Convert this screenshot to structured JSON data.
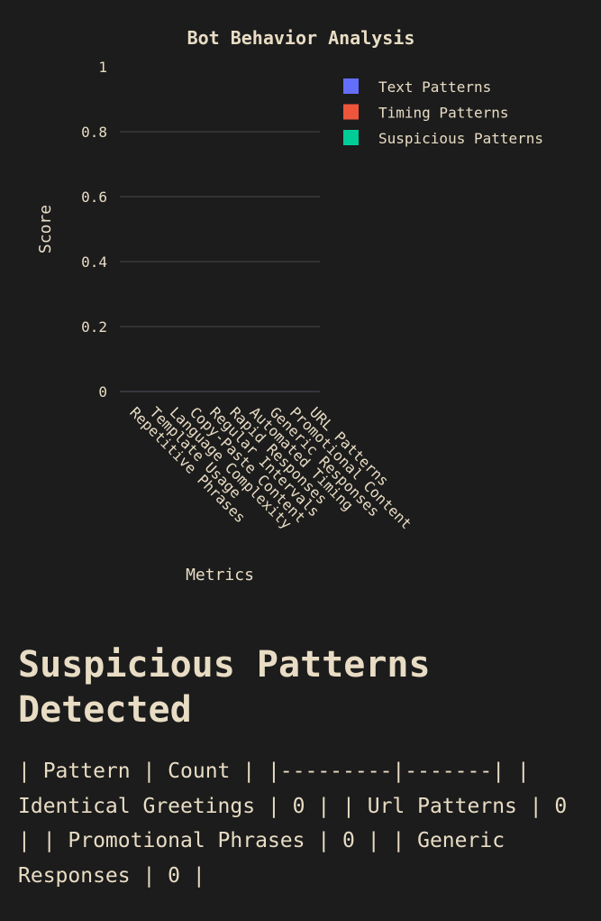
{
  "chart_data": {
    "type": "bar",
    "title": "Bot Behavior Analysis",
    "xlabel": "Metrics",
    "ylabel": "Score",
    "ylim": [
      0,
      1
    ],
    "yticks": [
      "0",
      "0.2",
      "0.4",
      "0.6",
      "0.8",
      "1"
    ],
    "grid": true,
    "legend_position": "top-right",
    "categories": [
      "Repetitive Phrases",
      "Template Usage",
      "Language Complexity",
      "Copy-Paste Content",
      "Regular Intervals",
      "Rapid Responses",
      "Automated Timing",
      "Generic Responses",
      "Promotional Content",
      "URL Patterns"
    ],
    "series": [
      {
        "name": "Text Patterns",
        "color": "#636efa",
        "values": [
          0,
          0,
          0,
          0,
          0,
          0,
          0,
          0,
          0,
          0
        ]
      },
      {
        "name": "Timing Patterns",
        "color": "#ef553b",
        "values": [
          0,
          0,
          0,
          0,
          0,
          0,
          0,
          0,
          0,
          0
        ]
      },
      {
        "name": "Suspicious Patterns",
        "color": "#00cc96",
        "values": [
          0,
          0,
          0,
          0,
          0,
          0,
          0,
          0,
          0,
          0
        ]
      }
    ]
  },
  "report": {
    "heading": "Suspicious Patterns Detected",
    "table_text": "| Pattern | Count | |---------|-------| | Identical Greetings | 0 | | Url Patterns | 0 | | Promotional Phrases | 0 | | Generic Responses | 0 |"
  },
  "colors": {
    "background": "#1c1c1c",
    "text": "#e8dcc4",
    "grid": "#3a3a3a"
  }
}
